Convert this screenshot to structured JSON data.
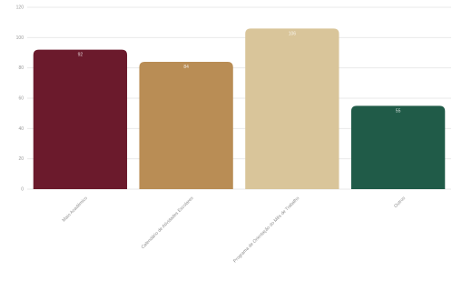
{
  "chart_data": {
    "type": "bar",
    "categories": [
      "Maio Académico",
      "Calendário de Atividades Escolares",
      "Programa de Orientação do Mês de Trabalho",
      "Outros"
    ],
    "values": [
      92,
      84,
      106,
      55
    ],
    "data_labels": [
      "92",
      "84",
      "106",
      "55"
    ],
    "ylim": [
      0,
      120
    ],
    "yticks": [
      0,
      20,
      40,
      60,
      80,
      100,
      120
    ],
    "colors": [
      "#6b1a2c",
      "#b98d55",
      "#d9c59a",
      "#205b48"
    ],
    "grid": true,
    "legend": "none",
    "title": "",
    "xlabel": "",
    "ylabel": ""
  }
}
